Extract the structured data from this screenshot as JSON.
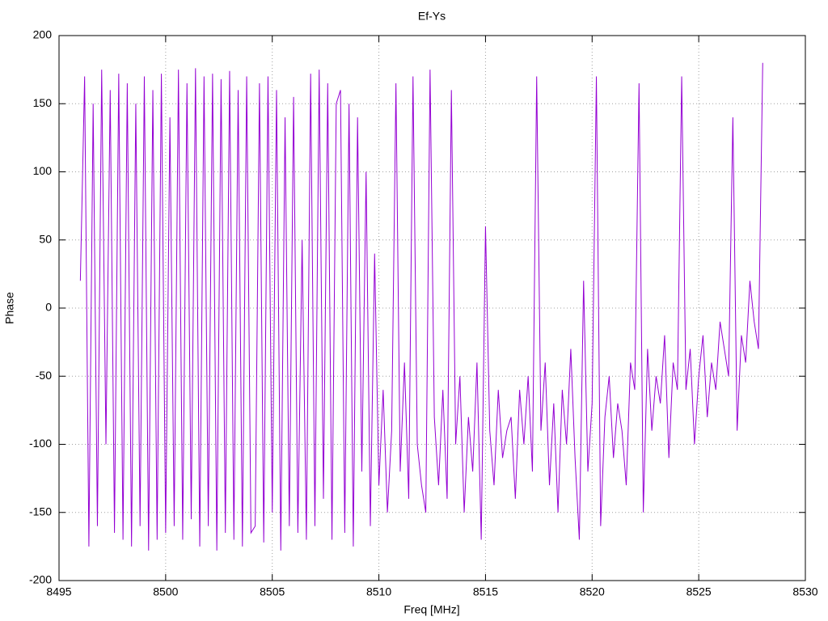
{
  "chart_data": {
    "type": "line",
    "title": "Ef-Ys",
    "x_label": "Freq [MHz]",
    "y_label": "Phase",
    "color": "#9400d3",
    "grid": true,
    "xlim": [
      8495,
      8530
    ],
    "xticks": [
      8495,
      8500,
      8505,
      8510,
      8515,
      8520,
      8525,
      8530
    ],
    "ylim": [
      -200,
      200
    ],
    "yticks": [
      -200,
      -150,
      -100,
      -50,
      0,
      50,
      100,
      150,
      200
    ],
    "x": [
      8496.0,
      8496.2,
      8496.4,
      8496.6,
      8496.8,
      8497.0,
      8497.2,
      8497.4,
      8497.6,
      8497.8,
      8498.0,
      8498.2,
      8498.4,
      8498.6,
      8498.8,
      8499.0,
      8499.2,
      8499.4,
      8499.6,
      8499.8,
      8500.0,
      8500.2,
      8500.4,
      8500.6,
      8500.8,
      8501.0,
      8501.2,
      8501.4,
      8501.6,
      8501.8,
      8502.0,
      8502.2,
      8502.4,
      8502.6,
      8502.8,
      8503.0,
      8503.2,
      8503.4,
      8503.6,
      8503.8,
      8504.0,
      8504.2,
      8504.4,
      8504.6,
      8504.8,
      8505.0,
      8505.2,
      8505.4,
      8505.6,
      8505.8,
      8506.0,
      8506.2,
      8506.4,
      8506.6,
      8506.8,
      8507.0,
      8507.2,
      8507.4,
      8507.6,
      8507.8,
      8508.0,
      8508.2,
      8508.4,
      8508.6,
      8508.8,
      8509.0,
      8509.2,
      8509.4,
      8509.6,
      8509.8,
      8510.0,
      8510.2,
      8510.4,
      8510.6,
      8510.8,
      8511.0,
      8511.2,
      8511.4,
      8511.6,
      8511.8,
      8512.0,
      8512.2,
      8512.4,
      8512.6,
      8512.8,
      8513.0,
      8513.2,
      8513.4,
      8513.6,
      8513.8,
      8514.0,
      8514.2,
      8514.4,
      8514.6,
      8514.8,
      8515.0,
      8515.2,
      8515.4,
      8515.6,
      8515.8,
      8516.0,
      8516.2,
      8516.4,
      8516.6,
      8516.8,
      8517.0,
      8517.2,
      8517.4,
      8517.6,
      8517.8,
      8518.0,
      8518.2,
      8518.4,
      8518.6,
      8518.8,
      8519.0,
      8519.2,
      8519.4,
      8519.6,
      8519.8,
      8520.0,
      8520.2,
      8520.4,
      8520.6,
      8520.8,
      8521.0,
      8521.2,
      8521.4,
      8521.6,
      8521.8,
      8522.0,
      8522.2,
      8522.4,
      8522.6,
      8522.8,
      8523.0,
      8523.2,
      8523.4,
      8523.6,
      8523.8,
      8524.0,
      8524.2,
      8524.4,
      8524.6,
      8524.8,
      8525.0,
      8525.2,
      8525.4,
      8525.6,
      8525.8,
      8526.0,
      8526.2,
      8526.4,
      8526.6,
      8526.8,
      8527.0,
      8527.2,
      8527.4,
      8527.6,
      8527.8,
      8528.0
    ],
    "values": [
      20,
      170,
      -175,
      150,
      -160,
      175,
      -100,
      160,
      -165,
      172,
      -170,
      165,
      -175,
      150,
      -160,
      170,
      -178,
      160,
      -170,
      172,
      -165,
      140,
      -160,
      175,
      -170,
      165,
      -155,
      176,
      -175,
      170,
      -160,
      172,
      -178,
      168,
      -165,
      174,
      -170,
      160,
      -175,
      170,
      -165,
      -160,
      165,
      -172,
      170,
      -150,
      160,
      -178,
      140,
      -160,
      155,
      -165,
      50,
      -170,
      172,
      -160,
      175,
      -140,
      165,
      -170,
      150,
      160,
      -165,
      150,
      -175,
      140,
      -120,
      100,
      -160,
      40,
      -130,
      -60,
      -150,
      -90,
      165,
      -120,
      -40,
      -140,
      170,
      -100,
      -130,
      -150,
      175,
      -80,
      -130,
      -60,
      -140,
      160,
      -100,
      -50,
      -150,
      -80,
      -120,
      -40,
      -170,
      60,
      -90,
      -130,
      -60,
      -110,
      -90,
      -80,
      -140,
      -60,
      -100,
      -50,
      -120,
      170,
      -90,
      -40,
      -130,
      -70,
      -150,
      -60,
      -100,
      -30,
      -110,
      -170,
      20,
      -120,
      -70,
      170,
      -160,
      -80,
      -50,
      -110,
      -70,
      -90,
      -130,
      -40,
      -60,
      165,
      -150,
      -30,
      -90,
      -50,
      -70,
      -20,
      -110,
      -40,
      -60,
      170,
      -60,
      -30,
      -100,
      -50,
      -20,
      -80,
      -40,
      -60,
      -10,
      -30,
      -50,
      140,
      -90,
      -20,
      -40,
      20,
      -10,
      -30,
      180
    ]
  }
}
